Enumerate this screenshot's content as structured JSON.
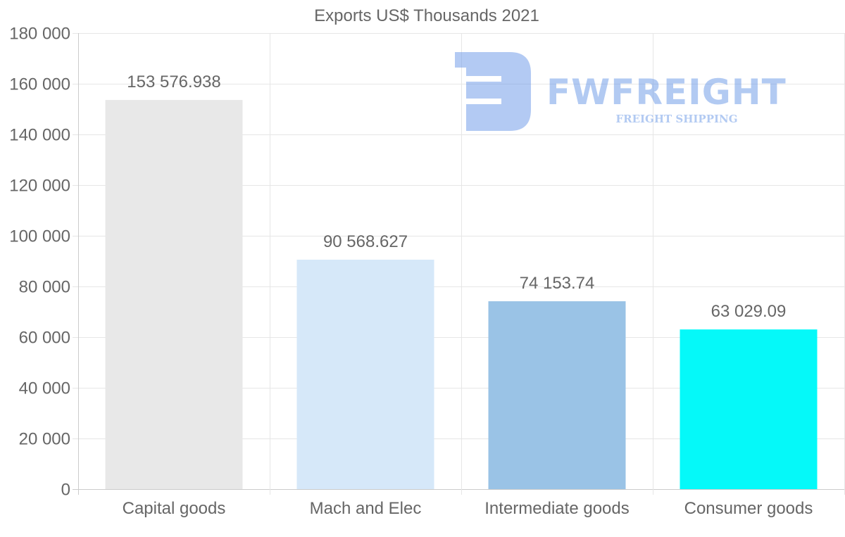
{
  "chart_data": {
    "type": "bar",
    "title": "Exports US$ Thousands 2021",
    "categories": [
      "Capital goods",
      "Mach and Elec",
      "Intermediate goods",
      "Consumer goods"
    ],
    "values": [
      153576.938,
      90568.627,
      74153.74,
      63029.09
    ],
    "value_labels": [
      "153 576.938",
      "90 568.627",
      "74 153.74",
      "63 029.09"
    ],
    "colors": [
      "#e8e8e8",
      "#d6e8f9",
      "#9ac3e6",
      "#05f9f9"
    ],
    "ylim": [
      0,
      180000
    ],
    "yticks": [
      0,
      20000,
      40000,
      60000,
      80000,
      100000,
      120000,
      140000,
      160000,
      180000
    ],
    "ytick_labels": [
      "0",
      "20 000",
      "40 000",
      "60 000",
      "80 000",
      "100 000",
      "120 000",
      "140 000",
      "160 000",
      "180 000"
    ],
    "xlabel": "",
    "ylabel": "",
    "grid": true,
    "legend": false
  },
  "watermark": {
    "brand": "FWFREIGHT",
    "tagline": "FREIGHT SHIPPING",
    "color": "#6d9ae8"
  }
}
